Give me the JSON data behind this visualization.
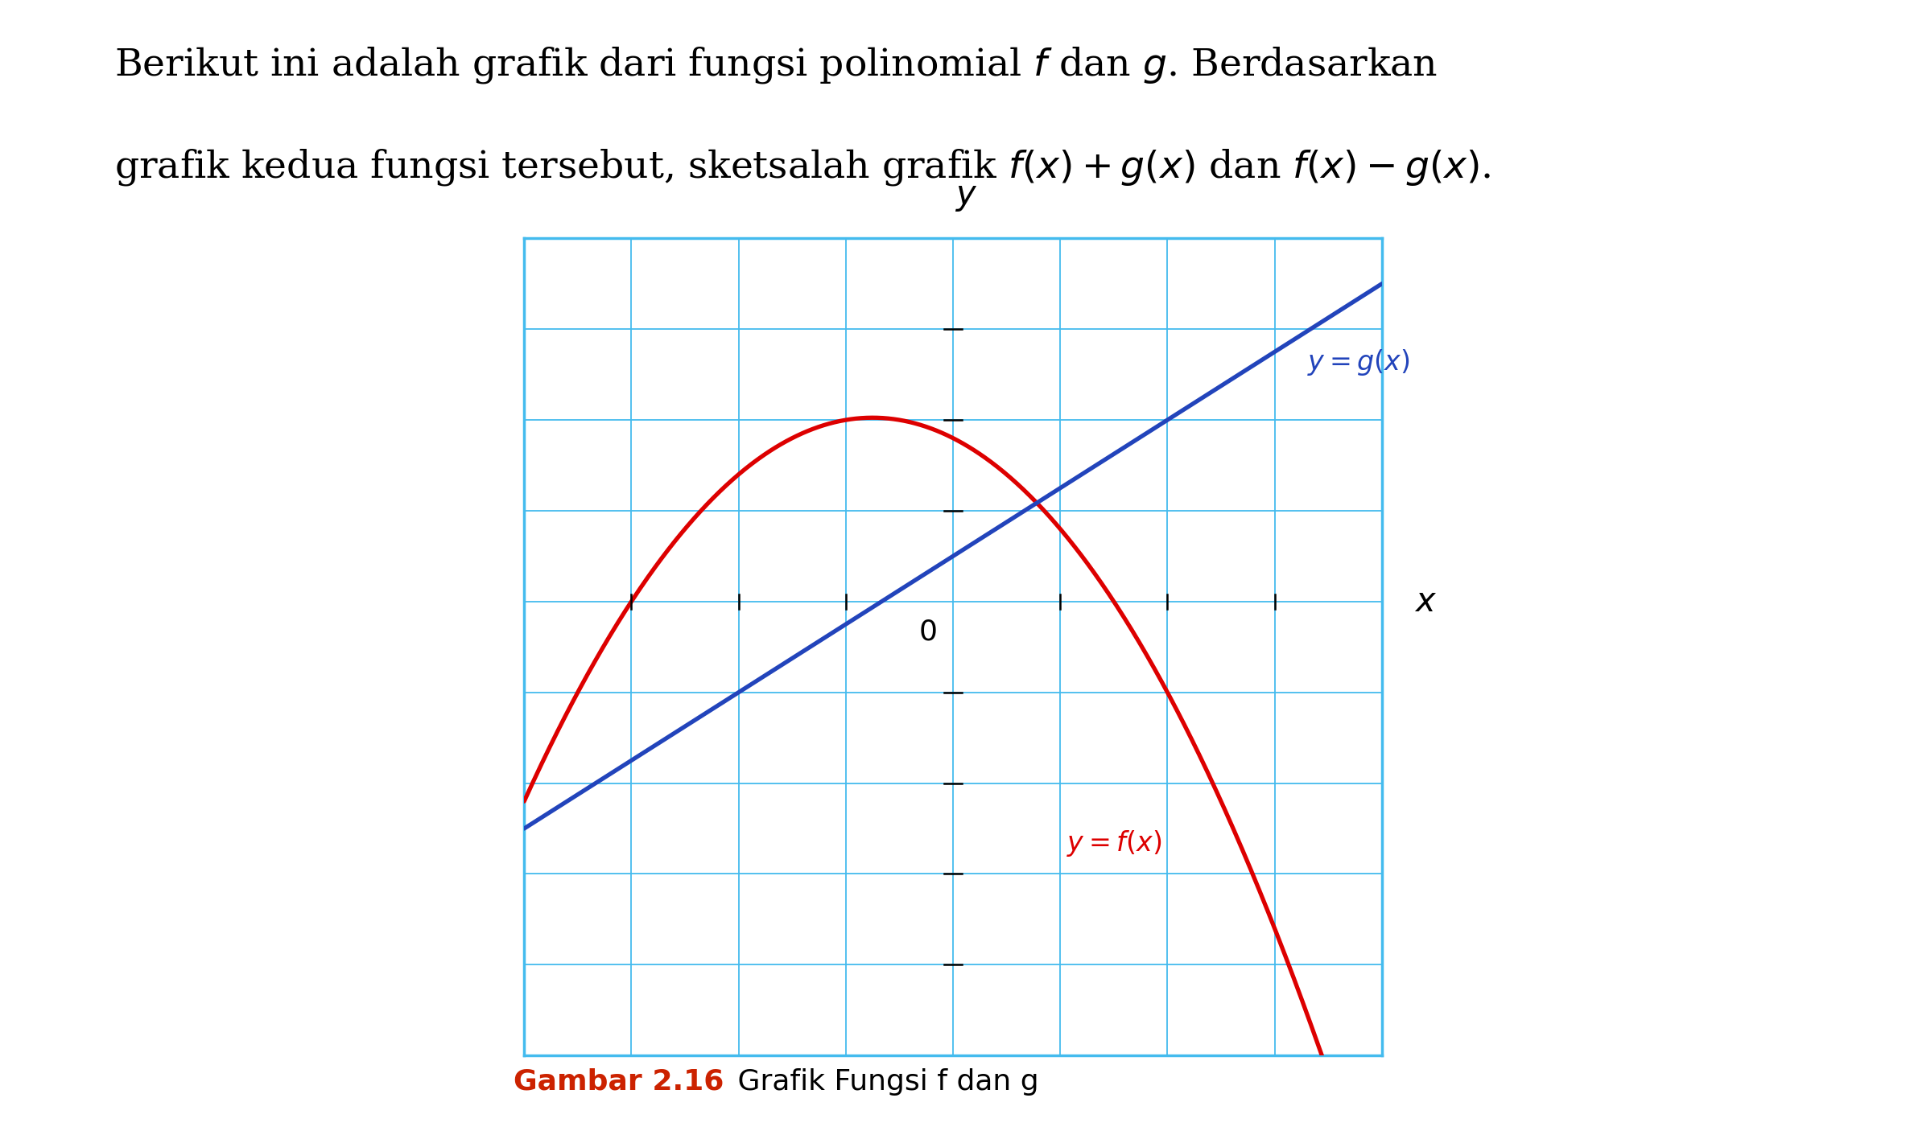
{
  "background_color": "#ffffff",
  "plot_bg_color": "#ffffff",
  "grid_color": "#44bbee",
  "border_color": "#44bbee",
  "f_color": "#dd0000",
  "g_color": "#2244bb",
  "label_f": "$y = f(x)$",
  "label_g": "$y = g(x)$",
  "xlim": [
    -4,
    4
  ],
  "ylim": [
    -5,
    4
  ],
  "grid_xticks": [
    -4,
    -3,
    -2,
    -1,
    0,
    1,
    2,
    3,
    4
  ],
  "grid_yticks": [
    -5,
    -4,
    -3,
    -2,
    -1,
    0,
    1,
    2,
    3,
    4
  ],
  "caption_label": "Gambar 2.16",
  "caption_label_color": "#cc2200",
  "caption_text": " Grafik Fungsi f dan g",
  "line1": "Berikut ini adalah grafik dari fungsi polinomial $f$ dan $g$. Berdasarkan",
  "line2": "grafik kedua fungsi tersebut, sketsalah grafik $f(x) + g(x)$ dan $f(x) - g(x)$."
}
